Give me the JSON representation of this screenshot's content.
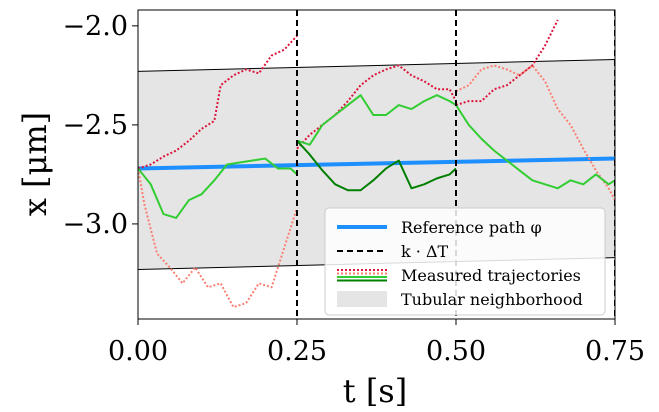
{
  "chart_data": {
    "type": "line",
    "title": "",
    "xlabel": "t [s]",
    "ylabel": "x [μm]",
    "xlim": [
      0,
      0.75
    ],
    "ylim": [
      -3.48,
      -1.92
    ],
    "x_ticks": [
      0,
      0.25,
      0.5,
      0.75
    ],
    "x_tick_labels": [
      "0.00",
      "0.25",
      "0.50",
      "0.75"
    ],
    "y_ticks": [
      -3.0,
      -2.5,
      -2.0
    ],
    "y_tick_labels": [
      "−3.0",
      "−2.5",
      "−2.0"
    ],
    "grid": false,
    "legend_position": "lower-right",
    "vlines": [
      0.25,
      0.5,
      0.75
    ],
    "tube": {
      "upper": [
        [
          0,
          -2.23
        ],
        [
          0.75,
          -2.17
        ]
      ],
      "lower": [
        [
          0,
          -3.23
        ],
        [
          0.75,
          -3.17
        ]
      ]
    },
    "reference_path": {
      "name": "Reference path φ",
      "color": "#1e8fff",
      "points": [
        [
          0,
          -2.72
        ],
        [
          0.75,
          -2.67
        ]
      ]
    },
    "legend": [
      {
        "label": "Reference path φ",
        "kind": "reference"
      },
      {
        "label": "k · ΔT",
        "kind": "dashed"
      },
      {
        "label": "Measured trajectories",
        "kind": "trajectories"
      },
      {
        "label": "Tubular neighborhood",
        "kind": "area"
      }
    ],
    "series": [
      {
        "color": "#dc143c",
        "style": "dotted",
        "points": [
          [
            0,
            -2.72
          ],
          [
            0.02,
            -2.7
          ],
          [
            0.04,
            -2.66
          ],
          [
            0.06,
            -2.63
          ],
          [
            0.08,
            -2.58
          ],
          [
            0.1,
            -2.52
          ],
          [
            0.12,
            -2.48
          ],
          [
            0.13,
            -2.3
          ],
          [
            0.15,
            -2.25
          ],
          [
            0.17,
            -2.22
          ],
          [
            0.19,
            -2.24
          ],
          [
            0.21,
            -2.15
          ],
          [
            0.23,
            -2.12
          ],
          [
            0.25,
            -2.05
          ]
        ]
      },
      {
        "color": "#fa8072",
        "style": "dotted",
        "points": [
          [
            0,
            -2.72
          ],
          [
            0.01,
            -2.9
          ],
          [
            0.03,
            -3.15
          ],
          [
            0.05,
            -3.22
          ],
          [
            0.07,
            -3.3
          ],
          [
            0.09,
            -3.22
          ],
          [
            0.11,
            -3.32
          ],
          [
            0.13,
            -3.3
          ],
          [
            0.15,
            -3.42
          ],
          [
            0.17,
            -3.4
          ],
          [
            0.19,
            -3.3
          ],
          [
            0.21,
            -3.32
          ],
          [
            0.23,
            -3.12
          ],
          [
            0.25,
            -2.92
          ]
        ]
      },
      {
        "color": "#32cd32",
        "style": "solid",
        "points": [
          [
            0,
            -2.72
          ],
          [
            0.02,
            -2.8
          ],
          [
            0.04,
            -2.95
          ],
          [
            0.06,
            -2.97
          ],
          [
            0.08,
            -2.88
          ],
          [
            0.1,
            -2.85
          ],
          [
            0.12,
            -2.78
          ],
          [
            0.14,
            -2.7
          ],
          [
            0.16,
            -2.69
          ],
          [
            0.18,
            -2.68
          ],
          [
            0.2,
            -2.67
          ],
          [
            0.22,
            -2.72
          ],
          [
            0.24,
            -2.72
          ],
          [
            0.25,
            -2.75
          ]
        ]
      },
      {
        "color": "#dc143c",
        "style": "dotted",
        "points": [
          [
            0.25,
            -2.62
          ],
          [
            0.27,
            -2.55
          ],
          [
            0.29,
            -2.5
          ],
          [
            0.31,
            -2.45
          ],
          [
            0.33,
            -2.38
          ],
          [
            0.35,
            -2.3
          ],
          [
            0.37,
            -2.25
          ],
          [
            0.39,
            -2.22
          ],
          [
            0.41,
            -2.2
          ],
          [
            0.43,
            -2.25
          ],
          [
            0.45,
            -2.28
          ],
          [
            0.47,
            -2.32
          ],
          [
            0.49,
            -2.32
          ],
          [
            0.5,
            -2.38
          ]
        ]
      },
      {
        "color": "#32cd32",
        "style": "solid",
        "points": [
          [
            0.25,
            -2.58
          ],
          [
            0.27,
            -2.6
          ],
          [
            0.29,
            -2.5
          ],
          [
            0.31,
            -2.45
          ],
          [
            0.33,
            -2.4
          ],
          [
            0.35,
            -2.35
          ],
          [
            0.37,
            -2.45
          ],
          [
            0.39,
            -2.45
          ],
          [
            0.41,
            -2.4
          ],
          [
            0.43,
            -2.42
          ],
          [
            0.45,
            -2.38
          ],
          [
            0.47,
            -2.35
          ],
          [
            0.49,
            -2.38
          ],
          [
            0.5,
            -2.4
          ]
        ]
      },
      {
        "color": "#008000",
        "style": "solid",
        "points": [
          [
            0.25,
            -2.58
          ],
          [
            0.27,
            -2.65
          ],
          [
            0.29,
            -2.73
          ],
          [
            0.31,
            -2.8
          ],
          [
            0.33,
            -2.83
          ],
          [
            0.35,
            -2.83
          ],
          [
            0.37,
            -2.78
          ],
          [
            0.39,
            -2.72
          ],
          [
            0.41,
            -2.68
          ],
          [
            0.43,
            -2.82
          ],
          [
            0.45,
            -2.8
          ],
          [
            0.47,
            -2.77
          ],
          [
            0.49,
            -2.75
          ],
          [
            0.5,
            -2.72
          ]
        ]
      },
      {
        "color": "#dc143c",
        "style": "dotted",
        "points": [
          [
            0.5,
            -2.4
          ],
          [
            0.52,
            -2.38
          ],
          [
            0.54,
            -2.38
          ],
          [
            0.56,
            -2.32
          ],
          [
            0.58,
            -2.3
          ],
          [
            0.6,
            -2.25
          ],
          [
            0.62,
            -2.2
          ],
          [
            0.64,
            -2.1
          ],
          [
            0.66,
            -1.97
          ]
        ]
      },
      {
        "color": "#fa8072",
        "style": "dotted",
        "points": [
          [
            0.5,
            -2.33
          ],
          [
            0.52,
            -2.3
          ],
          [
            0.54,
            -2.22
          ],
          [
            0.56,
            -2.2
          ],
          [
            0.58,
            -2.22
          ],
          [
            0.6,
            -2.25
          ],
          [
            0.62,
            -2.2
          ],
          [
            0.64,
            -2.28
          ],
          [
            0.66,
            -2.42
          ],
          [
            0.68,
            -2.5
          ],
          [
            0.7,
            -2.62
          ],
          [
            0.72,
            -2.73
          ],
          [
            0.74,
            -2.82
          ],
          [
            0.75,
            -2.88
          ]
        ]
      },
      {
        "color": "#32cd32",
        "style": "solid",
        "points": [
          [
            0.5,
            -2.4
          ],
          [
            0.52,
            -2.5
          ],
          [
            0.54,
            -2.57
          ],
          [
            0.56,
            -2.63
          ],
          [
            0.58,
            -2.68
          ],
          [
            0.6,
            -2.73
          ],
          [
            0.62,
            -2.78
          ],
          [
            0.64,
            -2.8
          ],
          [
            0.66,
            -2.82
          ],
          [
            0.68,
            -2.78
          ],
          [
            0.7,
            -2.8
          ],
          [
            0.72,
            -2.75
          ],
          [
            0.74,
            -2.8
          ],
          [
            0.75,
            -2.78
          ]
        ]
      }
    ]
  }
}
